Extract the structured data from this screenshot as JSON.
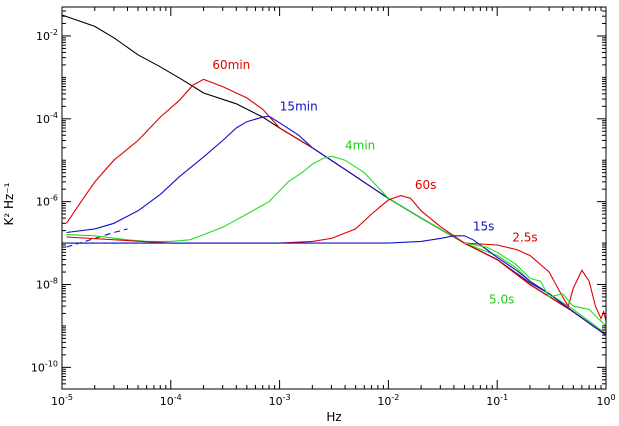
{
  "chart_data": {
    "type": "line",
    "title": "",
    "xlabel": "Hz",
    "ylabel": "K² Hz⁻¹",
    "x_scale": "log",
    "y_scale": "log",
    "xlim": [
      1e-05,
      1
    ],
    "ylim": [
      3e-11,
      0.05
    ],
    "grid": false,
    "x_ticks": [
      {
        "value": 1e-05,
        "base": "10",
        "exp": "-5"
      },
      {
        "value": 0.0001,
        "base": "10",
        "exp": "-4"
      },
      {
        "value": 0.001,
        "base": "10",
        "exp": "-3"
      },
      {
        "value": 0.01,
        "base": "10",
        "exp": "-2"
      },
      {
        "value": 0.1,
        "base": "10",
        "exp": "-1"
      },
      {
        "value": 1,
        "base": "10",
        "exp": "0"
      }
    ],
    "y_ticks": [
      {
        "value": 0.01,
        "base": "10",
        "exp": "-2"
      },
      {
        "value": 0.0001,
        "base": "10",
        "exp": "-4"
      },
      {
        "value": 1e-06,
        "base": "10",
        "exp": "-6"
      },
      {
        "value": 1e-08,
        "base": "10",
        "exp": "-8"
      },
      {
        "value": 1e-10,
        "base": "10",
        "exp": "-10"
      }
    ],
    "series": [
      {
        "color": "#000000",
        "dash": false,
        "points": [
          [
            1e-05,
            0.032
          ],
          [
            2e-05,
            0.017
          ],
          [
            3e-05,
            0.009
          ],
          [
            5e-05,
            0.0035
          ],
          [
            8e-05,
            0.0018
          ],
          [
            0.00013,
            0.00085
          ],
          [
            0.0002,
            0.00042
          ],
          [
            0.0004,
            0.00023
          ],
          [
            0.0007,
            0.00011
          ],
          [
            0.001,
            6e-05
          ],
          [
            0.002,
            2e-05
          ],
          [
            0.004,
            6e-06
          ],
          [
            0.01,
            1.2e-06
          ],
          [
            0.02,
            4e-07
          ],
          [
            0.05,
            1e-07
          ],
          [
            0.1,
            4e-08
          ],
          [
            0.2,
            1e-08
          ],
          [
            0.5,
            2.2e-09
          ],
          [
            1,
            6e-10
          ]
        ]
      },
      {
        "name": "60min",
        "color": "#e00000",
        "dash": false,
        "points": [
          [
            1.1e-05,
            3e-07
          ],
          [
            1.5e-05,
            1e-06
          ],
          [
            2e-05,
            3e-06
          ],
          [
            3e-05,
            1e-05
          ],
          [
            5e-05,
            3e-05
          ],
          [
            8e-05,
            0.00011
          ],
          [
            0.00012,
            0.00028
          ],
          [
            0.00016,
            0.00065
          ],
          [
            0.0002,
            0.0009
          ],
          [
            0.0003,
            0.0006
          ],
          [
            0.0005,
            0.00032
          ],
          [
            0.0007,
            0.00017
          ],
          [
            0.001,
            6e-05
          ],
          [
            0.002,
            2e-05
          ],
          [
            0.004,
            6e-06
          ],
          [
            0.01,
            1.2e-06
          ],
          [
            0.02,
            4e-07
          ],
          [
            0.05,
            1e-07
          ],
          [
            0.1,
            4e-08
          ],
          [
            0.2,
            1e-08
          ],
          [
            0.5,
            2.2e-09
          ],
          [
            1,
            6e-10
          ]
        ]
      },
      {
        "name": "15min",
        "color": "#1010c8",
        "dash": false,
        "points": [
          [
            1.1e-05,
            1.8e-07
          ],
          [
            2e-05,
            2.2e-07
          ],
          [
            3e-05,
            3e-07
          ],
          [
            5e-05,
            6e-07
          ],
          [
            8e-05,
            1.5e-06
          ],
          [
            0.00012,
            4e-06
          ],
          [
            0.0002,
            1.2e-05
          ],
          [
            0.0003,
            3e-05
          ],
          [
            0.0004,
            6e-05
          ],
          [
            0.0005,
            8.5e-05
          ],
          [
            0.0007,
            0.00011
          ],
          [
            0.0008,
            0.000115
          ],
          [
            0.001,
            8e-05
          ],
          [
            0.0015,
            4e-05
          ],
          [
            0.002,
            2e-05
          ],
          [
            0.004,
            6e-06
          ],
          [
            0.01,
            1.2e-06
          ],
          [
            0.02,
            4e-07
          ],
          [
            0.05,
            1e-07
          ],
          [
            0.1,
            4e-08
          ],
          [
            0.2,
            1.1e-08
          ],
          [
            0.3,
            6e-09
          ],
          [
            0.5,
            2.2e-09
          ],
          [
            1,
            6e-10
          ]
        ]
      },
      {
        "color": "#1010c8",
        "dash": true,
        "points": [
          [
            1.1e-05,
            8e-08
          ],
          [
            2e-05,
            1.3e-07
          ],
          [
            3e-05,
            1.8e-07
          ],
          [
            4e-05,
            2.2e-07
          ]
        ]
      },
      {
        "name": "4min",
        "color": "#22dd22",
        "dash": false,
        "points": [
          [
            1.1e-05,
            1.6e-07
          ],
          [
            2e-05,
            1.5e-07
          ],
          [
            4e-05,
            1.2e-07
          ],
          [
            6e-05,
            1.1e-07
          ],
          [
            0.0001,
            1.1e-07
          ],
          [
            0.00015,
            1.2e-07
          ],
          [
            0.0002,
            1.6e-07
          ],
          [
            0.0003,
            2.4e-07
          ],
          [
            0.0005,
            5e-07
          ],
          [
            0.0008,
            1e-06
          ],
          [
            0.0012,
            3e-06
          ],
          [
            0.0016,
            5e-06
          ],
          [
            0.002,
            8e-06
          ],
          [
            0.0025,
            1.1e-05
          ],
          [
            0.003,
            1.25e-05
          ],
          [
            0.004,
            1e-05
          ],
          [
            0.006,
            5e-06
          ],
          [
            0.01,
            1.2e-06
          ],
          [
            0.02,
            4e-07
          ],
          [
            0.05,
            1e-07
          ],
          [
            0.1,
            5e-08
          ],
          [
            0.15,
            2.5e-08
          ],
          [
            0.2,
            1.2e-08
          ],
          [
            0.3,
            6e-09
          ],
          [
            0.5,
            2.5e-09
          ],
          [
            1,
            6.5e-10
          ]
        ]
      },
      {
        "color": "#22aa22",
        "dash": true,
        "points": [
          [
            1e-05,
            1e-07
          ],
          [
            3e-05,
            1e-07
          ],
          [
            6e-05,
            1e-07
          ]
        ]
      },
      {
        "name": "60s",
        "color": "#e00000",
        "dash": false,
        "points": [
          [
            1.1e-05,
            1.4e-07
          ],
          [
            0.0001,
            1e-07
          ],
          [
            0.001,
            1e-07
          ],
          [
            0.002,
            1.1e-07
          ],
          [
            0.003,
            1.3e-07
          ],
          [
            0.005,
            2.2e-07
          ],
          [
            0.007,
            5e-07
          ],
          [
            0.01,
            1.1e-06
          ],
          [
            0.013,
            1.4e-06
          ],
          [
            0.016,
            1.2e-06
          ],
          [
            0.02,
            6e-07
          ],
          [
            0.03,
            2.5e-07
          ],
          [
            0.05,
            1e-07
          ],
          [
            0.1,
            4e-08
          ],
          [
            0.2,
            1e-08
          ],
          [
            0.5,
            2.2e-09
          ],
          [
            1,
            6e-10
          ]
        ]
      },
      {
        "name": "15s",
        "color": "#1010c8",
        "dash": false,
        "points": [
          [
            1.1e-05,
            1e-07
          ],
          [
            0.0001,
            1e-07
          ],
          [
            0.001,
            1e-07
          ],
          [
            0.01,
            1e-07
          ],
          [
            0.02,
            1.1e-07
          ],
          [
            0.03,
            1.3e-07
          ],
          [
            0.04,
            1.5e-07
          ],
          [
            0.05,
            1.5e-07
          ],
          [
            0.06,
            1.2e-07
          ],
          [
            0.08,
            7e-08
          ],
          [
            0.1,
            4.5e-08
          ],
          [
            0.15,
            2.2e-08
          ],
          [
            0.2,
            1.2e-08
          ],
          [
            0.3,
            6e-09
          ],
          [
            0.5,
            2.2e-09
          ],
          [
            1,
            6e-10
          ]
        ]
      },
      {
        "name": "2.5s",
        "color": "#e00000",
        "dash": false,
        "points": [
          [
            0.05,
            1e-07
          ],
          [
            0.1,
            9e-08
          ],
          [
            0.15,
            7e-08
          ],
          [
            0.2,
            5e-08
          ],
          [
            0.3,
            2e-08
          ],
          [
            0.4,
            5e-09
          ],
          [
            0.45,
            3e-09
          ],
          [
            0.5,
            8e-09
          ],
          [
            0.6,
            2.2e-08
          ],
          [
            0.7,
            1.2e-08
          ],
          [
            0.8,
            3e-09
          ],
          [
            0.9,
            1.5e-09
          ],
          [
            0.95,
            2.2e-09
          ],
          [
            1,
            1.3e-09
          ]
        ]
      },
      {
        "name": "5.0s",
        "color": "#22dd22",
        "dash": false,
        "points": [
          [
            0.05,
            1e-07
          ],
          [
            0.08,
            8e-08
          ],
          [
            0.1,
            6e-08
          ],
          [
            0.15,
            3e-08
          ],
          [
            0.2,
            1.4e-08
          ],
          [
            0.25,
            1.2e-08
          ],
          [
            0.3,
            5e-09
          ],
          [
            0.4,
            6e-09
          ],
          [
            0.5,
            3e-09
          ],
          [
            0.7,
            2.5e-09
          ],
          [
            0.85,
            1.5e-09
          ],
          [
            1,
            1e-09
          ]
        ]
      }
    ],
    "annotations": [
      {
        "text": "60min",
        "color": "#e00000",
        "x": 0.00036,
        "y": 0.0016
      },
      {
        "text": "15min",
        "color": "#1010c8",
        "x": 0.0015,
        "y": 0.00016
      },
      {
        "text": "4min",
        "color": "#22cc22",
        "x": 0.0055,
        "y": 1.8e-05
      },
      {
        "text": "60s",
        "color": "#e00000",
        "x": 0.022,
        "y": 2e-06
      },
      {
        "text": "15s",
        "color": "#1010c8",
        "x": 0.075,
        "y": 2e-07
      },
      {
        "text": "2.5s",
        "color": "#e00000",
        "x": 0.18,
        "y": 1.1e-07
      },
      {
        "text": "5.0s",
        "color": "#22cc22",
        "x": 0.11,
        "y": 3.5e-09
      }
    ]
  }
}
